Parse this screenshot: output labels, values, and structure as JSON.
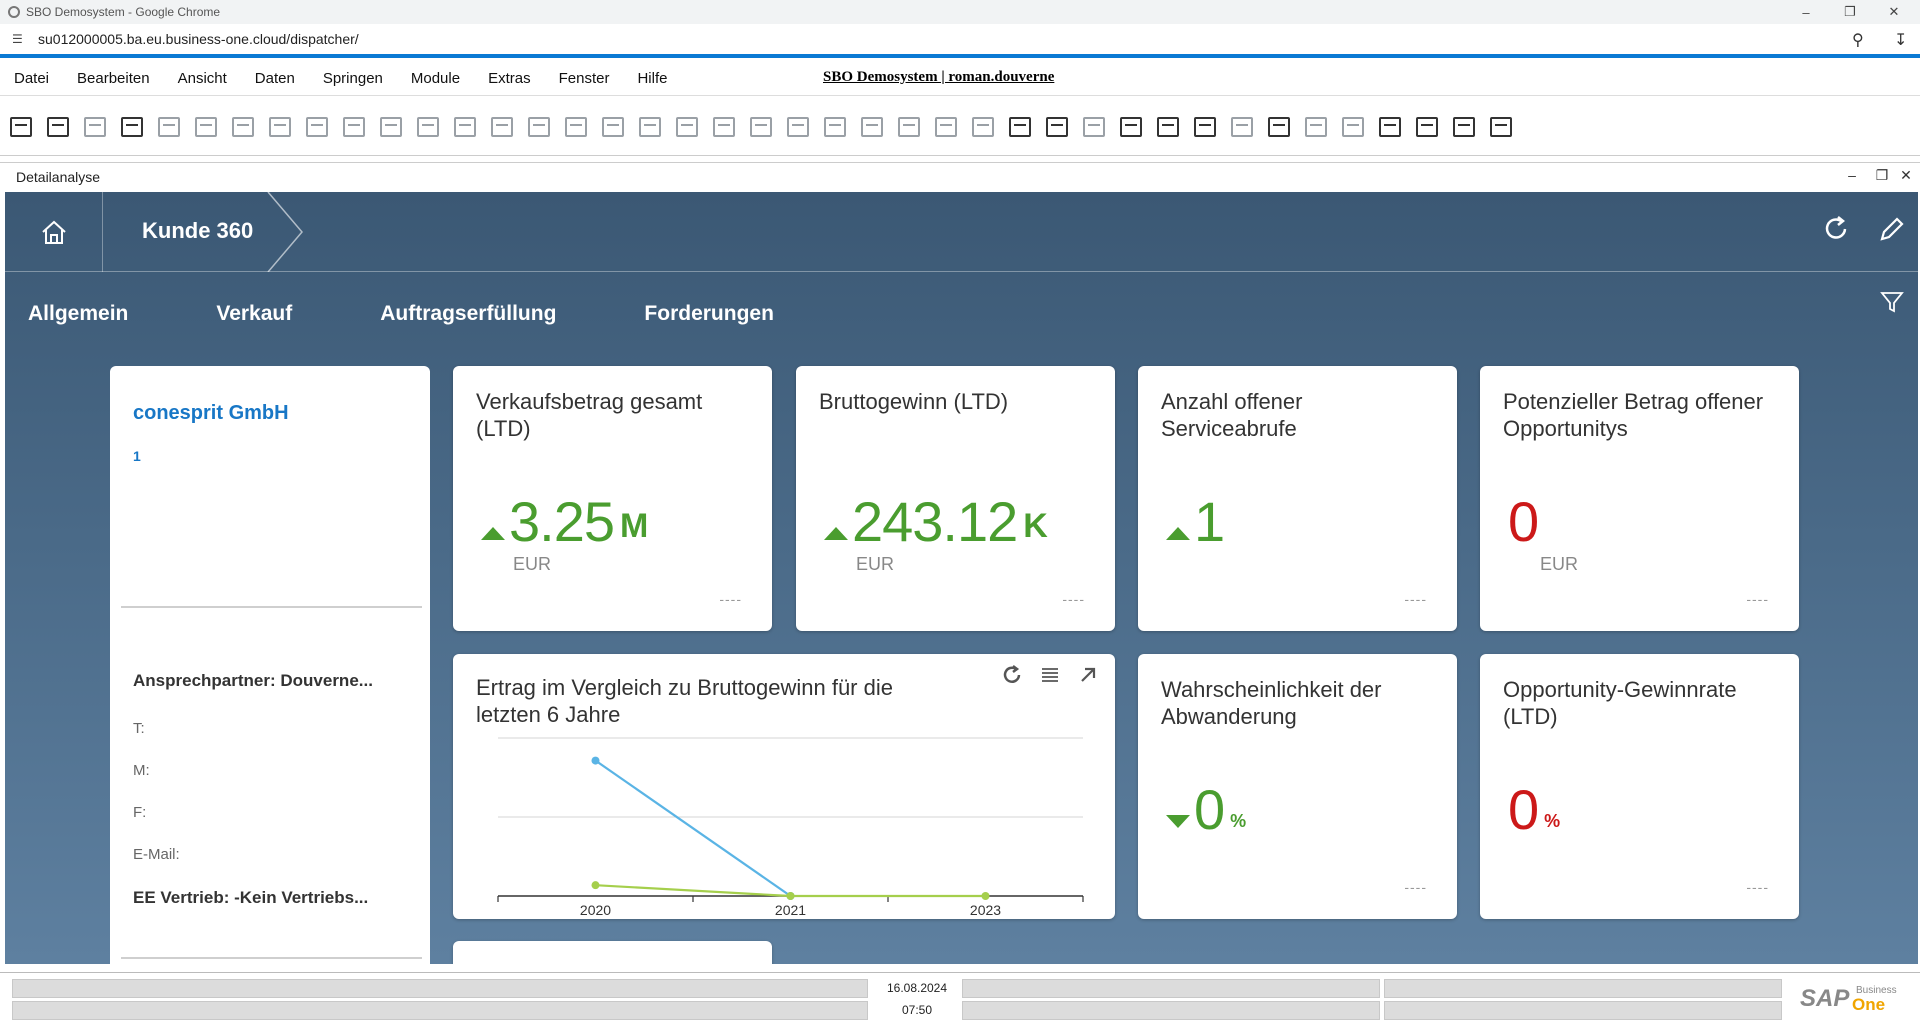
{
  "browser": {
    "window_title": "SBO Demosystem - Google Chrome",
    "url": "su012000005.ba.eu.business-one.cloud/dispatcher/"
  },
  "menu": {
    "items": [
      "Datei",
      "Bearbeiten",
      "Ansicht",
      "Daten",
      "Springen",
      "Module",
      "Extras",
      "Fenster",
      "Hilfe"
    ],
    "system_title": "SBO Demosystem | roman.douverne"
  },
  "window": {
    "title": "Detailanalyse"
  },
  "shell": {
    "breadcrumb": "Kunde 360"
  },
  "tabs": [
    "Allgemein",
    "Verkauf",
    "Auftragserfüllung",
    "Forderungen"
  ],
  "customer": {
    "name": "conesprit GmbH",
    "number": "1",
    "contact": "Ansprechpartner: Douverne...",
    "phone_label": "T:",
    "mobile_label": "M:",
    "fax_label": "F:",
    "email_label": "E-Mail:",
    "sales_employee": "EE Vertrieb: -Kein Vertriebs..."
  },
  "tiles": {
    "sales": {
      "title": "Verkaufsbetrag gesamt (LTD)",
      "value": "3.25",
      "scale": "M",
      "unit": "EUR",
      "footer": "----"
    },
    "profit": {
      "title": "Bruttogewinn (LTD)",
      "value": "243.12",
      "scale": "K",
      "unit": "EUR",
      "footer": "----"
    },
    "service": {
      "title": "Anzahl offener Serviceabrufe",
      "value": "1",
      "footer": "----"
    },
    "opportunity": {
      "title": "Potenzieller Betrag offener Opportunitys",
      "value": "0",
      "unit": "EUR",
      "footer": "----"
    },
    "churn": {
      "title": "Wahrscheinlichkeit der Abwanderung",
      "value": "0",
      "unit": "%",
      "footer": "----"
    },
    "winrate": {
      "title": "Opportunity-Gewinnrate (LTD)",
      "value": "0",
      "unit": "%",
      "footer": "----"
    }
  },
  "chart_data": {
    "type": "line",
    "title": "Ertrag im Vergleich zu Bruttogewinn für die letzten 6 Jahre",
    "x": [
      "2020",
      "2021",
      "2023"
    ],
    "series": [
      {
        "values": [
          3.0,
          0.0,
          null
        ],
        "color": "#5ab4e5"
      },
      {
        "values": [
          0.24,
          0.0,
          0.0
        ],
        "color": "#a5cf4c"
      }
    ],
    "ylim": [
      0,
      3.5
    ],
    "grid": true
  },
  "status": {
    "date": "16.08.2024",
    "time": "07:50"
  },
  "brand": {
    "sap": "SAP",
    "business": "Business",
    "one": "One"
  },
  "colors": {
    "positive": "#4a9d2f",
    "negative": "#cc1919",
    "link": "#1877c6"
  }
}
